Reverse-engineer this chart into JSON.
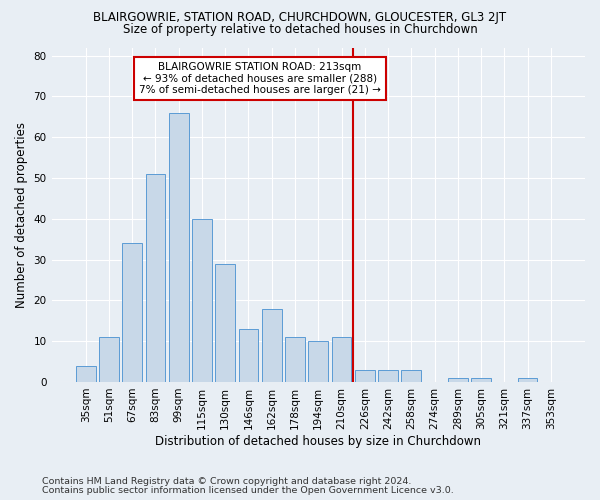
{
  "title": "BLAIRGOWRIE, STATION ROAD, CHURCHDOWN, GLOUCESTER, GL3 2JT",
  "subtitle": "Size of property relative to detached houses in Churchdown",
  "xlabel": "Distribution of detached houses by size in Churchdown",
  "ylabel": "Number of detached properties",
  "footnote1": "Contains HM Land Registry data © Crown copyright and database right 2024.",
  "footnote2": "Contains public sector information licensed under the Open Government Licence v3.0.",
  "categories": [
    "35sqm",
    "51sqm",
    "67sqm",
    "83sqm",
    "99sqm",
    "115sqm",
    "130sqm",
    "146sqm",
    "162sqm",
    "178sqm",
    "194sqm",
    "210sqm",
    "226sqm",
    "242sqm",
    "258sqm",
    "274sqm",
    "289sqm",
    "305sqm",
    "321sqm",
    "337sqm",
    "353sqm"
  ],
  "values": [
    4,
    11,
    34,
    51,
    66,
    40,
    29,
    13,
    18,
    11,
    10,
    11,
    3,
    3,
    3,
    0,
    1,
    1,
    0,
    1,
    0
  ],
  "bar_color": "#c8d8e8",
  "bar_edge_color": "#5b9bd5",
  "vline_color": "#cc0000",
  "annotation_text": "BLAIRGOWRIE STATION ROAD: 213sqm\n← 93% of detached houses are smaller (288)\n7% of semi-detached houses are larger (21) →",
  "annotation_box_color": "#ffffff",
  "annotation_border_color": "#cc0000",
  "ylim": [
    0,
    82
  ],
  "yticks": [
    0,
    10,
    20,
    30,
    40,
    50,
    60,
    70,
    80
  ],
  "background_color": "#e8eef4",
  "grid_color": "#ffffff",
  "title_fontsize": 8.5,
  "subtitle_fontsize": 8.5,
  "axis_label_fontsize": 8.5,
  "tick_fontsize": 7.5,
  "annotation_fontsize": 7.5,
  "footnote_fontsize": 6.8
}
